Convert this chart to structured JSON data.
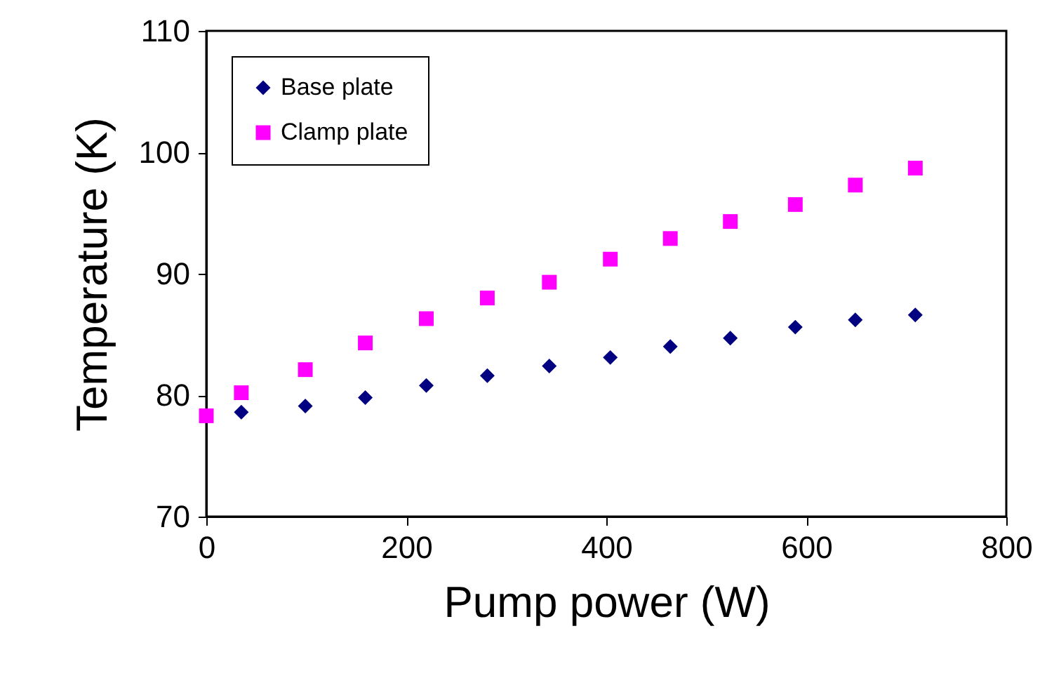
{
  "chart_data": {
    "type": "scatter",
    "xlabel": "Pump power (W)",
    "ylabel": "Temperature (K)",
    "xlim": [
      0,
      800
    ],
    "xticks": [
      0,
      200,
      400,
      600,
      800
    ],
    "ylim": [
      70,
      110
    ],
    "yticks": [
      70,
      80,
      90,
      100,
      110
    ],
    "grid": false,
    "legend": "top left",
    "series": [
      {
        "name": "Base plate",
        "color": "#000080",
        "marker": "diamond",
        "x": [
          35,
          99,
          159,
          220,
          281,
          343,
          404,
          464,
          524,
          589,
          649,
          709
        ],
        "values": [
          78.6,
          79.1,
          79.8,
          80.8,
          81.6,
          82.4,
          83.1,
          84.0,
          84.7,
          85.6,
          86.2,
          86.6
        ]
      },
      {
        "name": "Clamp plate",
        "color": "#ff00ff",
        "marker": "square",
        "x": [
          0,
          35,
          99,
          159,
          220,
          281,
          343,
          404,
          464,
          524,
          589,
          649,
          709
        ],
        "values": [
          78.3,
          80.2,
          82.1,
          84.3,
          86.3,
          88.0,
          89.3,
          91.2,
          92.9,
          94.3,
          95.7,
          97.3,
          98.7
        ]
      }
    ]
  }
}
